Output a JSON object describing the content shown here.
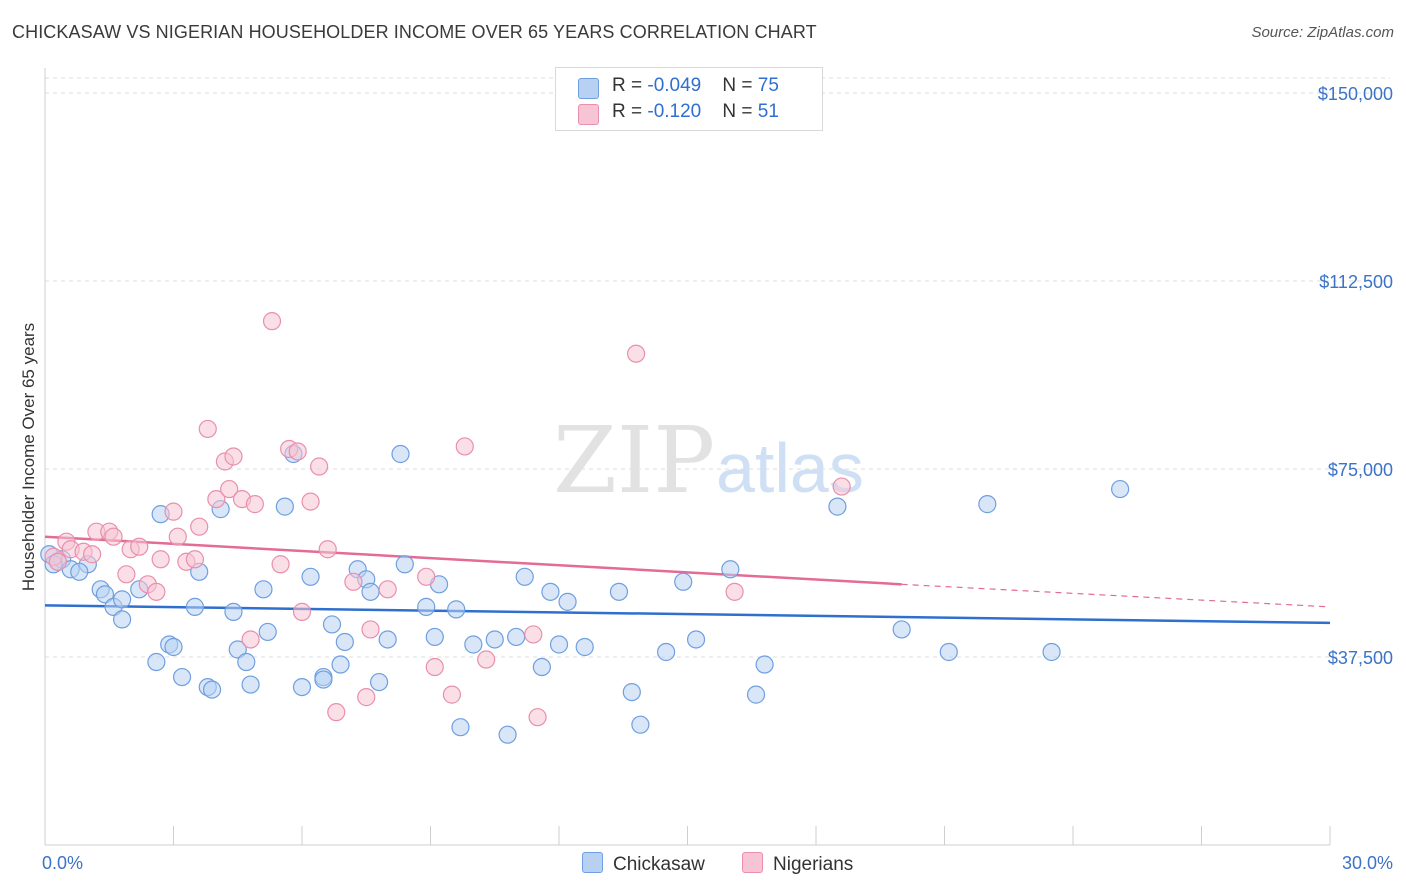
{
  "title": "CHICKASAW VS NIGERIAN HOUSEHOLDER INCOME OVER 65 YEARS CORRELATION CHART",
  "source": "Source: ZipAtlas.com",
  "watermark": {
    "zip": "ZIP",
    "atlas": "atlas"
  },
  "colors": {
    "chickasaw_fill": "#b8d1f3",
    "chickasaw_stroke": "#6f9fe0",
    "chickasaw_line": "#2f6fce",
    "nigerians_fill": "#f6c4d4",
    "nigerians_stroke": "#e98fae",
    "nigerians_line": "#e36b94",
    "tick_text": "#3a73c8",
    "grid": "#dedede"
  },
  "legend": {
    "rows": [
      {
        "r_label": "R = ",
        "r_value": "-0.049",
        "n_label": "N = ",
        "n_value": "75"
      },
      {
        "r_label": "R = ",
        "r_value": " -0.120",
        "n_label": "N = ",
        "n_value": " 51"
      }
    ]
  },
  "chart_data": {
    "type": "scatter",
    "ylabel": "Householder Income Over 65 years",
    "xlim": [
      0,
      30
    ],
    "ylim": [
      0,
      153000
    ],
    "y_ticks": [
      {
        "value": 37500,
        "label": "$37,500"
      },
      {
        "value": 75000,
        "label": "$75,000"
      },
      {
        "value": 112500,
        "label": "$112,500"
      },
      {
        "value": 150000,
        "label": "$150,000"
      }
    ],
    "x_tick_labels": [
      {
        "value": 0,
        "label": "0.0%"
      },
      {
        "value": 30,
        "label": "30.0%"
      }
    ],
    "x_minor_ticks": [
      3,
      6,
      9,
      12,
      15,
      18,
      21,
      24,
      27
    ],
    "legend_position": "top-center",
    "grid": true,
    "series": [
      {
        "name": "Chickasaw",
        "trend": {
          "x0": 0,
          "y0": 47800,
          "x1": 30,
          "y1": 44300,
          "dashed_from": null
        },
        "points": [
          [
            0.1,
            58000
          ],
          [
            0.3,
            56500
          ],
          [
            0.4,
            57000
          ],
          [
            0.6,
            55000
          ],
          [
            1.0,
            56000
          ],
          [
            0.8,
            54500
          ],
          [
            1.3,
            51000
          ],
          [
            1.4,
            50000
          ],
          [
            1.6,
            47500
          ],
          [
            1.8,
            49000
          ],
          [
            2.2,
            51000
          ],
          [
            1.8,
            45000
          ],
          [
            2.6,
            36500
          ],
          [
            2.7,
            66000
          ],
          [
            2.9,
            40000
          ],
          [
            3.0,
            39500
          ],
          [
            3.2,
            33500
          ],
          [
            3.5,
            47500
          ],
          [
            3.6,
            54500
          ],
          [
            3.8,
            31500
          ],
          [
            3.9,
            31000
          ],
          [
            4.1,
            67000
          ],
          [
            4.4,
            46500
          ],
          [
            4.5,
            39000
          ],
          [
            4.7,
            36500
          ],
          [
            4.8,
            32000
          ],
          [
            5.1,
            51000
          ],
          [
            5.2,
            42500
          ],
          [
            5.6,
            67500
          ],
          [
            5.8,
            78000
          ],
          [
            6.0,
            31500
          ],
          [
            6.2,
            53500
          ],
          [
            6.5,
            33500
          ],
          [
            6.7,
            44000
          ],
          [
            6.5,
            33000
          ],
          [
            6.9,
            36000
          ],
          [
            7.0,
            40500
          ],
          [
            7.3,
            55000
          ],
          [
            7.5,
            53000
          ],
          [
            7.6,
            50500
          ],
          [
            7.8,
            32500
          ],
          [
            8.0,
            41000
          ],
          [
            8.3,
            78000
          ],
          [
            8.4,
            56000
          ],
          [
            8.9,
            47500
          ],
          [
            9.1,
            41500
          ],
          [
            9.2,
            52000
          ],
          [
            9.6,
            47000
          ],
          [
            9.7,
            23500
          ],
          [
            10.0,
            40000
          ],
          [
            10.5,
            41000
          ],
          [
            10.8,
            22000
          ],
          [
            11.0,
            41500
          ],
          [
            11.2,
            53500
          ],
          [
            11.6,
            35500
          ],
          [
            11.8,
            50500
          ],
          [
            12.0,
            40000
          ],
          [
            12.2,
            48500
          ],
          [
            12.6,
            39500
          ],
          [
            13.4,
            50500
          ],
          [
            13.7,
            30500
          ],
          [
            13.9,
            24000
          ],
          [
            14.5,
            38500
          ],
          [
            14.9,
            52500
          ],
          [
            15.2,
            41000
          ],
          [
            16.0,
            55000
          ],
          [
            16.6,
            30000
          ],
          [
            16.8,
            36000
          ],
          [
            18.5,
            67500
          ],
          [
            20.0,
            43000
          ],
          [
            21.1,
            38500
          ],
          [
            22.0,
            68000
          ],
          [
            23.5,
            38500
          ],
          [
            25.1,
            71000
          ],
          [
            0.2,
            56000
          ]
        ]
      },
      {
        "name": "Nigerians",
        "trend": {
          "x0": 0,
          "y0": 61500,
          "x1": 20,
          "y1": 52000,
          "dashed_from": 20,
          "dashed_x1": 30,
          "dashed_y1": 47500
        },
        "points": [
          [
            0.2,
            57500
          ],
          [
            0.3,
            56500
          ],
          [
            0.5,
            60500
          ],
          [
            0.6,
            59000
          ],
          [
            0.9,
            58500
          ],
          [
            1.1,
            58000
          ],
          [
            1.2,
            62500
          ],
          [
            1.5,
            62500
          ],
          [
            1.6,
            61500
          ],
          [
            1.9,
            54000
          ],
          [
            2.0,
            59000
          ],
          [
            2.2,
            59500
          ],
          [
            2.4,
            52000
          ],
          [
            2.6,
            50500
          ],
          [
            2.7,
            57000
          ],
          [
            3.0,
            66500
          ],
          [
            3.1,
            61500
          ],
          [
            3.3,
            56500
          ],
          [
            3.5,
            57000
          ],
          [
            3.6,
            63500
          ],
          [
            3.8,
            83000
          ],
          [
            4.0,
            69000
          ],
          [
            4.2,
            76500
          ],
          [
            4.3,
            71000
          ],
          [
            4.4,
            77500
          ],
          [
            4.6,
            69000
          ],
          [
            4.8,
            41000
          ],
          [
            4.9,
            68000
          ],
          [
            5.3,
            104500
          ],
          [
            5.5,
            56000
          ],
          [
            5.7,
            79000
          ],
          [
            5.9,
            78500
          ],
          [
            6.0,
            46500
          ],
          [
            6.2,
            68500
          ],
          [
            6.4,
            75500
          ],
          [
            6.6,
            59000
          ],
          [
            6.8,
            26500
          ],
          [
            7.2,
            52500
          ],
          [
            7.5,
            29500
          ],
          [
            7.6,
            43000
          ],
          [
            8.0,
            51000
          ],
          [
            8.9,
            53500
          ],
          [
            9.1,
            35500
          ],
          [
            9.5,
            30000
          ],
          [
            9.8,
            79500
          ],
          [
            10.3,
            37000
          ],
          [
            11.4,
            42000
          ],
          [
            11.5,
            25500
          ],
          [
            13.8,
            98000
          ],
          [
            16.1,
            50500
          ],
          [
            18.6,
            71500
          ]
        ]
      }
    ]
  }
}
